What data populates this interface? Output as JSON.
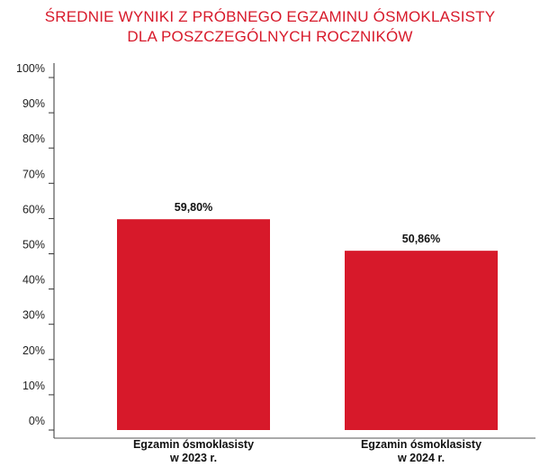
{
  "chart_data": {
    "type": "bar",
    "title_lines": [
      "ŚREDNIE WYNIKI Z PRÓBNEGO EGZAMINU ÓSMOKLASISTY",
      "DLA POSZCZEGÓLNYCH ROCZNIKÓW"
    ],
    "categories": [
      [
        "Egzamin ósmoklasisty",
        "w 2023 r."
      ],
      [
        "Egzamin ósmoklasisty",
        "w 2024 r."
      ]
    ],
    "values": [
      59.8,
      50.86
    ],
    "data_labels": [
      "59,80%",
      "50,86%"
    ],
    "y_ticks": [
      0,
      10,
      20,
      30,
      40,
      50,
      60,
      70,
      80,
      90,
      100
    ],
    "y_tick_labels": [
      "0%",
      "10%",
      "20%",
      "30%",
      "40%",
      "50%",
      "60%",
      "70%",
      "80%",
      "90%",
      "100%"
    ],
    "ylim": [
      0,
      100
    ],
    "xlabel": "",
    "ylabel": "",
    "grid": false,
    "bar_color": "#d7192a",
    "title_color": "#d7192a"
  }
}
